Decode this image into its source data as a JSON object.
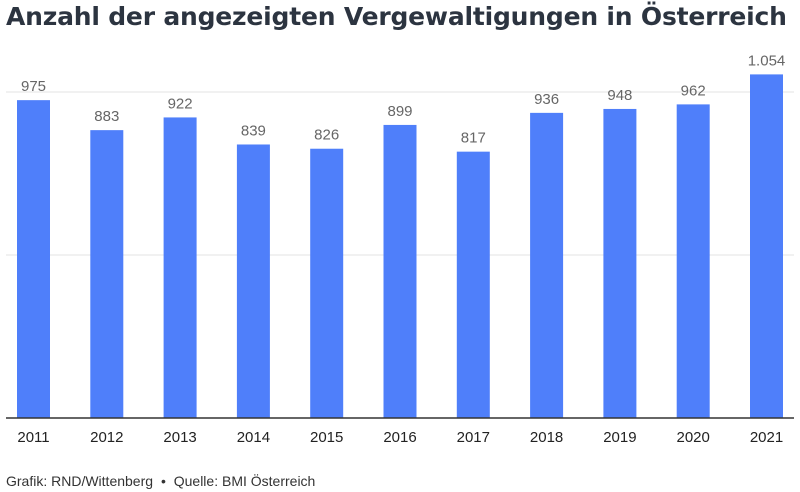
{
  "title": "Anzahl der angezeigten Vergewaltigungen in Österreich",
  "footer": {
    "credit": "Grafik: RND/Wittenberg",
    "separator": "•",
    "source": "Quelle: BMI Österreich"
  },
  "colors": {
    "bar": "#4f7ffa",
    "grid": "#e3e3e3",
    "axis": "#333333",
    "label": "#666666"
  },
  "chart_data": {
    "type": "bar",
    "title": "Anzahl der angezeigten Vergewaltigungen in Österreich",
    "categories": [
      "2011",
      "2012",
      "2013",
      "2014",
      "2015",
      "2016",
      "2017",
      "2018",
      "2019",
      "2020",
      "2021"
    ],
    "values": [
      975,
      883,
      922,
      839,
      826,
      899,
      817,
      936,
      948,
      962,
      1054
    ],
    "data_labels": [
      "975",
      "883",
      "922",
      "839",
      "826",
      "899",
      "817",
      "936",
      "948",
      "962",
      "1.054"
    ],
    "ylim": [
      0,
      1000
    ],
    "grid": true,
    "legend": "none"
  }
}
